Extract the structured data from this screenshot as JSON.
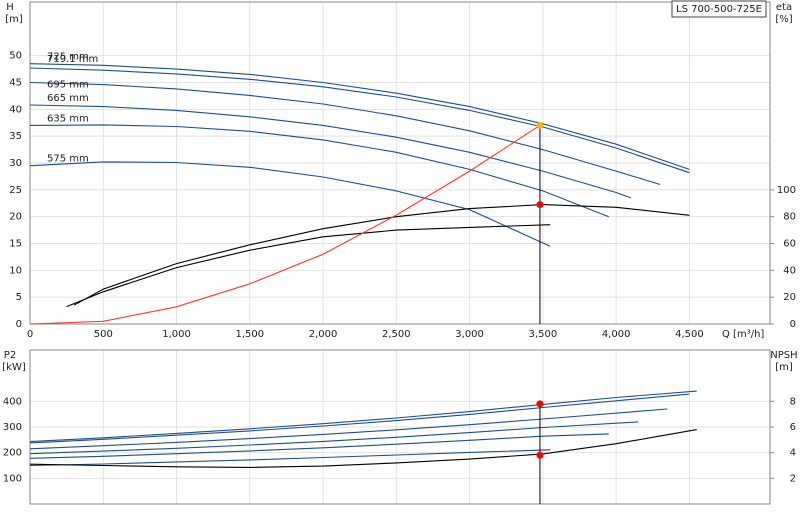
{
  "chart_data": [
    {
      "type": "line",
      "title": "LS 700-500-725E",
      "xlabel": "Q [m³/h]",
      "ylabel": "H",
      "yunit": "[m]",
      "y2label": "eta",
      "y2unit": "[%]",
      "xlim": [
        0,
        5050
      ],
      "xticks": [
        0,
        500,
        {
          "value": 1000,
          "label": "1,000"
        },
        {
          "value": 1500,
          "label": "1,500"
        },
        {
          "value": 2000,
          "label": "2,000"
        },
        {
          "value": 2500,
          "label": "2,500"
        },
        {
          "value": 3000,
          "label": "3,000"
        },
        {
          "value": 3500,
          "label": "3,500"
        },
        {
          "value": 4000,
          "label": "4,000"
        },
        {
          "value": 4500,
          "label": "4,500"
        }
      ],
      "ylim": [
        0,
        60
      ],
      "yticks": [
        0,
        5,
        10,
        15,
        20,
        25,
        30,
        35,
        40,
        45,
        50
      ],
      "y2lim": [
        0,
        240
      ],
      "y2ticks": [
        0,
        20,
        40,
        60,
        80,
        100
      ],
      "grid": true,
      "series": [
        {
          "name": "725 mm",
          "color": "#1f4e8c",
          "x": [
            0,
            500,
            1000,
            1500,
            2000,
            2500,
            3000,
            3500,
            4000,
            4500
          ],
          "values": [
            48.5,
            48.2,
            47.5,
            46.5,
            45,
            43,
            40.5,
            37.3,
            33.5,
            28.8
          ]
        },
        {
          "name": "719.1 mm",
          "color": "#1f4e8c",
          "x": [
            0,
            500,
            1000,
            1500,
            2000,
            2500,
            3000,
            3500,
            4000,
            4500
          ],
          "values": [
            47.7,
            47.3,
            46.6,
            45.6,
            44.2,
            42.3,
            39.8,
            36.7,
            32.8,
            28.2
          ]
        },
        {
          "name": "695 mm",
          "color": "#1f4e8c",
          "x": [
            0,
            500,
            1000,
            1500,
            2000,
            2500,
            3000,
            3500,
            4000,
            4300
          ],
          "values": [
            45,
            44.6,
            43.8,
            42.6,
            41,
            38.8,
            36,
            32.5,
            28.5,
            26
          ]
        },
        {
          "name": "665 mm",
          "color": "#1f4e8c",
          "x": [
            0,
            500,
            1000,
            1500,
            2000,
            2500,
            3000,
            3500,
            4000,
            4100
          ],
          "values": [
            40.8,
            40.5,
            39.8,
            38.6,
            37,
            34.8,
            32,
            28.5,
            24.5,
            23.5
          ]
        },
        {
          "name": "635 mm",
          "color": "#1f4e8c",
          "x": [
            0,
            500,
            1000,
            1500,
            2000,
            2500,
            3000,
            3500,
            3950
          ],
          "values": [
            37,
            37.1,
            36.8,
            35.9,
            34.3,
            32,
            28.8,
            24.8,
            20
          ]
        },
        {
          "name": "575 mm",
          "color": "#1f4e8c",
          "x": [
            0,
            500,
            1000,
            1500,
            2000,
            2500,
            3000,
            3550
          ],
          "values": [
            29.5,
            30.2,
            30.1,
            29.2,
            27.4,
            24.8,
            21.3,
            14.5
          ]
        },
        {
          "color": "#000000",
          "axis": "y2",
          "x": [
            300,
            500,
            1000,
            1500,
            2000,
            2500,
            3000,
            3500,
            4000,
            4500
          ],
          "values": [
            14,
            26,
            45,
            59,
            71,
            80,
            86,
            89,
            87,
            81
          ]
        },
        {
          "color": "#000000",
          "axis": "y2",
          "x": [
            250,
            500,
            1000,
            1500,
            2000,
            2500,
            3000,
            3550
          ],
          "values": [
            13,
            24,
            42,
            55,
            65,
            70,
            72,
            74
          ]
        },
        {
          "color": "#ff3b30",
          "x": [
            0,
            500,
            1000,
            1500,
            2000,
            2500,
            3000,
            3480
          ],
          "values": [
            0,
            0.5,
            3.2,
            7.5,
            13,
            20.3,
            28.5,
            37
          ]
        }
      ],
      "points": [
        {
          "x": 3480,
          "y": 37,
          "color": "#f5b800"
        },
        {
          "x": 3480,
          "y": 89,
          "axis": "y2",
          "color": "#ff0000"
        }
      ]
    },
    {
      "type": "line",
      "ylabel": "P2",
      "yunit": "[kW]",
      "y2label": "NPSH",
      "y2unit": "[m]",
      "xlim": [
        0,
        5050
      ],
      "xticks": [
        0,
        500,
        1000,
        1500,
        2000,
        2500,
        3000,
        3500,
        4000,
        4500
      ],
      "ylim": [
        0,
        600
      ],
      "yticks": [
        100,
        200,
        300,
        400
      ],
      "y2lim": [
        0,
        12
      ],
      "y2ticks": [
        2,
        4,
        6,
        8
      ],
      "grid": true,
      "series": [
        {
          "color": "#1f4e8c",
          "x": [
            0,
            500,
            1000,
            1500,
            2000,
            2500,
            3000,
            3500,
            4000,
            4550
          ],
          "values": [
            243,
            258,
            275,
            293,
            313,
            335,
            360,
            388,
            415,
            440
          ]
        },
        {
          "color": "#1f4e8c",
          "x": [
            0,
            500,
            1000,
            1500,
            2000,
            2500,
            3000,
            3500,
            4000,
            4500
          ],
          "values": [
            238,
            252,
            268,
            285,
            304,
            325,
            349,
            376,
            402,
            428
          ]
        },
        {
          "color": "#1f4e8c",
          "x": [
            0,
            500,
            1000,
            1500,
            2000,
            2500,
            3000,
            3500,
            4350
          ],
          "values": [
            215,
            227,
            240,
            255,
            271,
            289,
            309,
            331,
            370
          ]
        },
        {
          "color": "#1f4e8c",
          "x": [
            0,
            500,
            1000,
            1500,
            2000,
            2500,
            3000,
            3500,
            4150
          ],
          "values": [
            196,
            206,
            217,
            230,
            244,
            260,
            278,
            298,
            320
          ]
        },
        {
          "color": "#1f4e8c",
          "x": [
            0,
            500,
            1000,
            1500,
            2000,
            2500,
            3000,
            3500,
            3950
          ],
          "values": [
            178,
            186,
            196,
            207,
            219,
            233,
            248,
            264,
            273
          ]
        },
        {
          "color": "#1f4e8c",
          "x": [
            0,
            500,
            1000,
            1500,
            2000,
            2500,
            3000,
            3550
          ],
          "values": [
            150,
            156,
            164,
            172,
            181,
            191,
            201,
            211
          ]
        },
        {
          "color": "#000000",
          "axis": "y2",
          "x": [
            0,
            500,
            1000,
            1500,
            2000,
            2500,
            3000,
            3500,
            4000,
            4550
          ],
          "values": [
            3.1,
            3.0,
            2.9,
            2.85,
            2.95,
            3.2,
            3.5,
            3.9,
            4.7,
            5.8
          ]
        }
      ],
      "points": [
        {
          "x": 3480,
          "y": 390,
          "color": "#ff0000"
        },
        {
          "x": 3480,
          "y": 3.8,
          "axis": "y2",
          "color": "#ff0000"
        }
      ]
    }
  ]
}
